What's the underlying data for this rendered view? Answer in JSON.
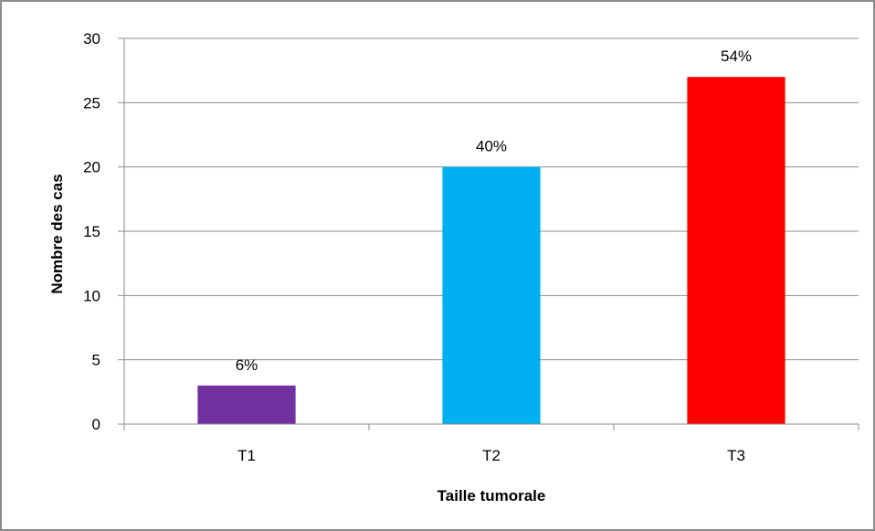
{
  "chart_data": {
    "type": "bar",
    "title": "",
    "xlabel": "Taille tumorale",
    "ylabel": "Nombre des cas",
    "categories": [
      "T1",
      "T2",
      "T3"
    ],
    "values": [
      3,
      20,
      27
    ],
    "data_labels": [
      "6%",
      "40%",
      "54%"
    ],
    "colors": [
      "#7030a0",
      "#00b0f0",
      "#ff0000"
    ],
    "ylim": [
      0,
      30
    ],
    "yticks": [
      0,
      5,
      10,
      15,
      20,
      25,
      30
    ],
    "grid": true,
    "legend": "none"
  }
}
